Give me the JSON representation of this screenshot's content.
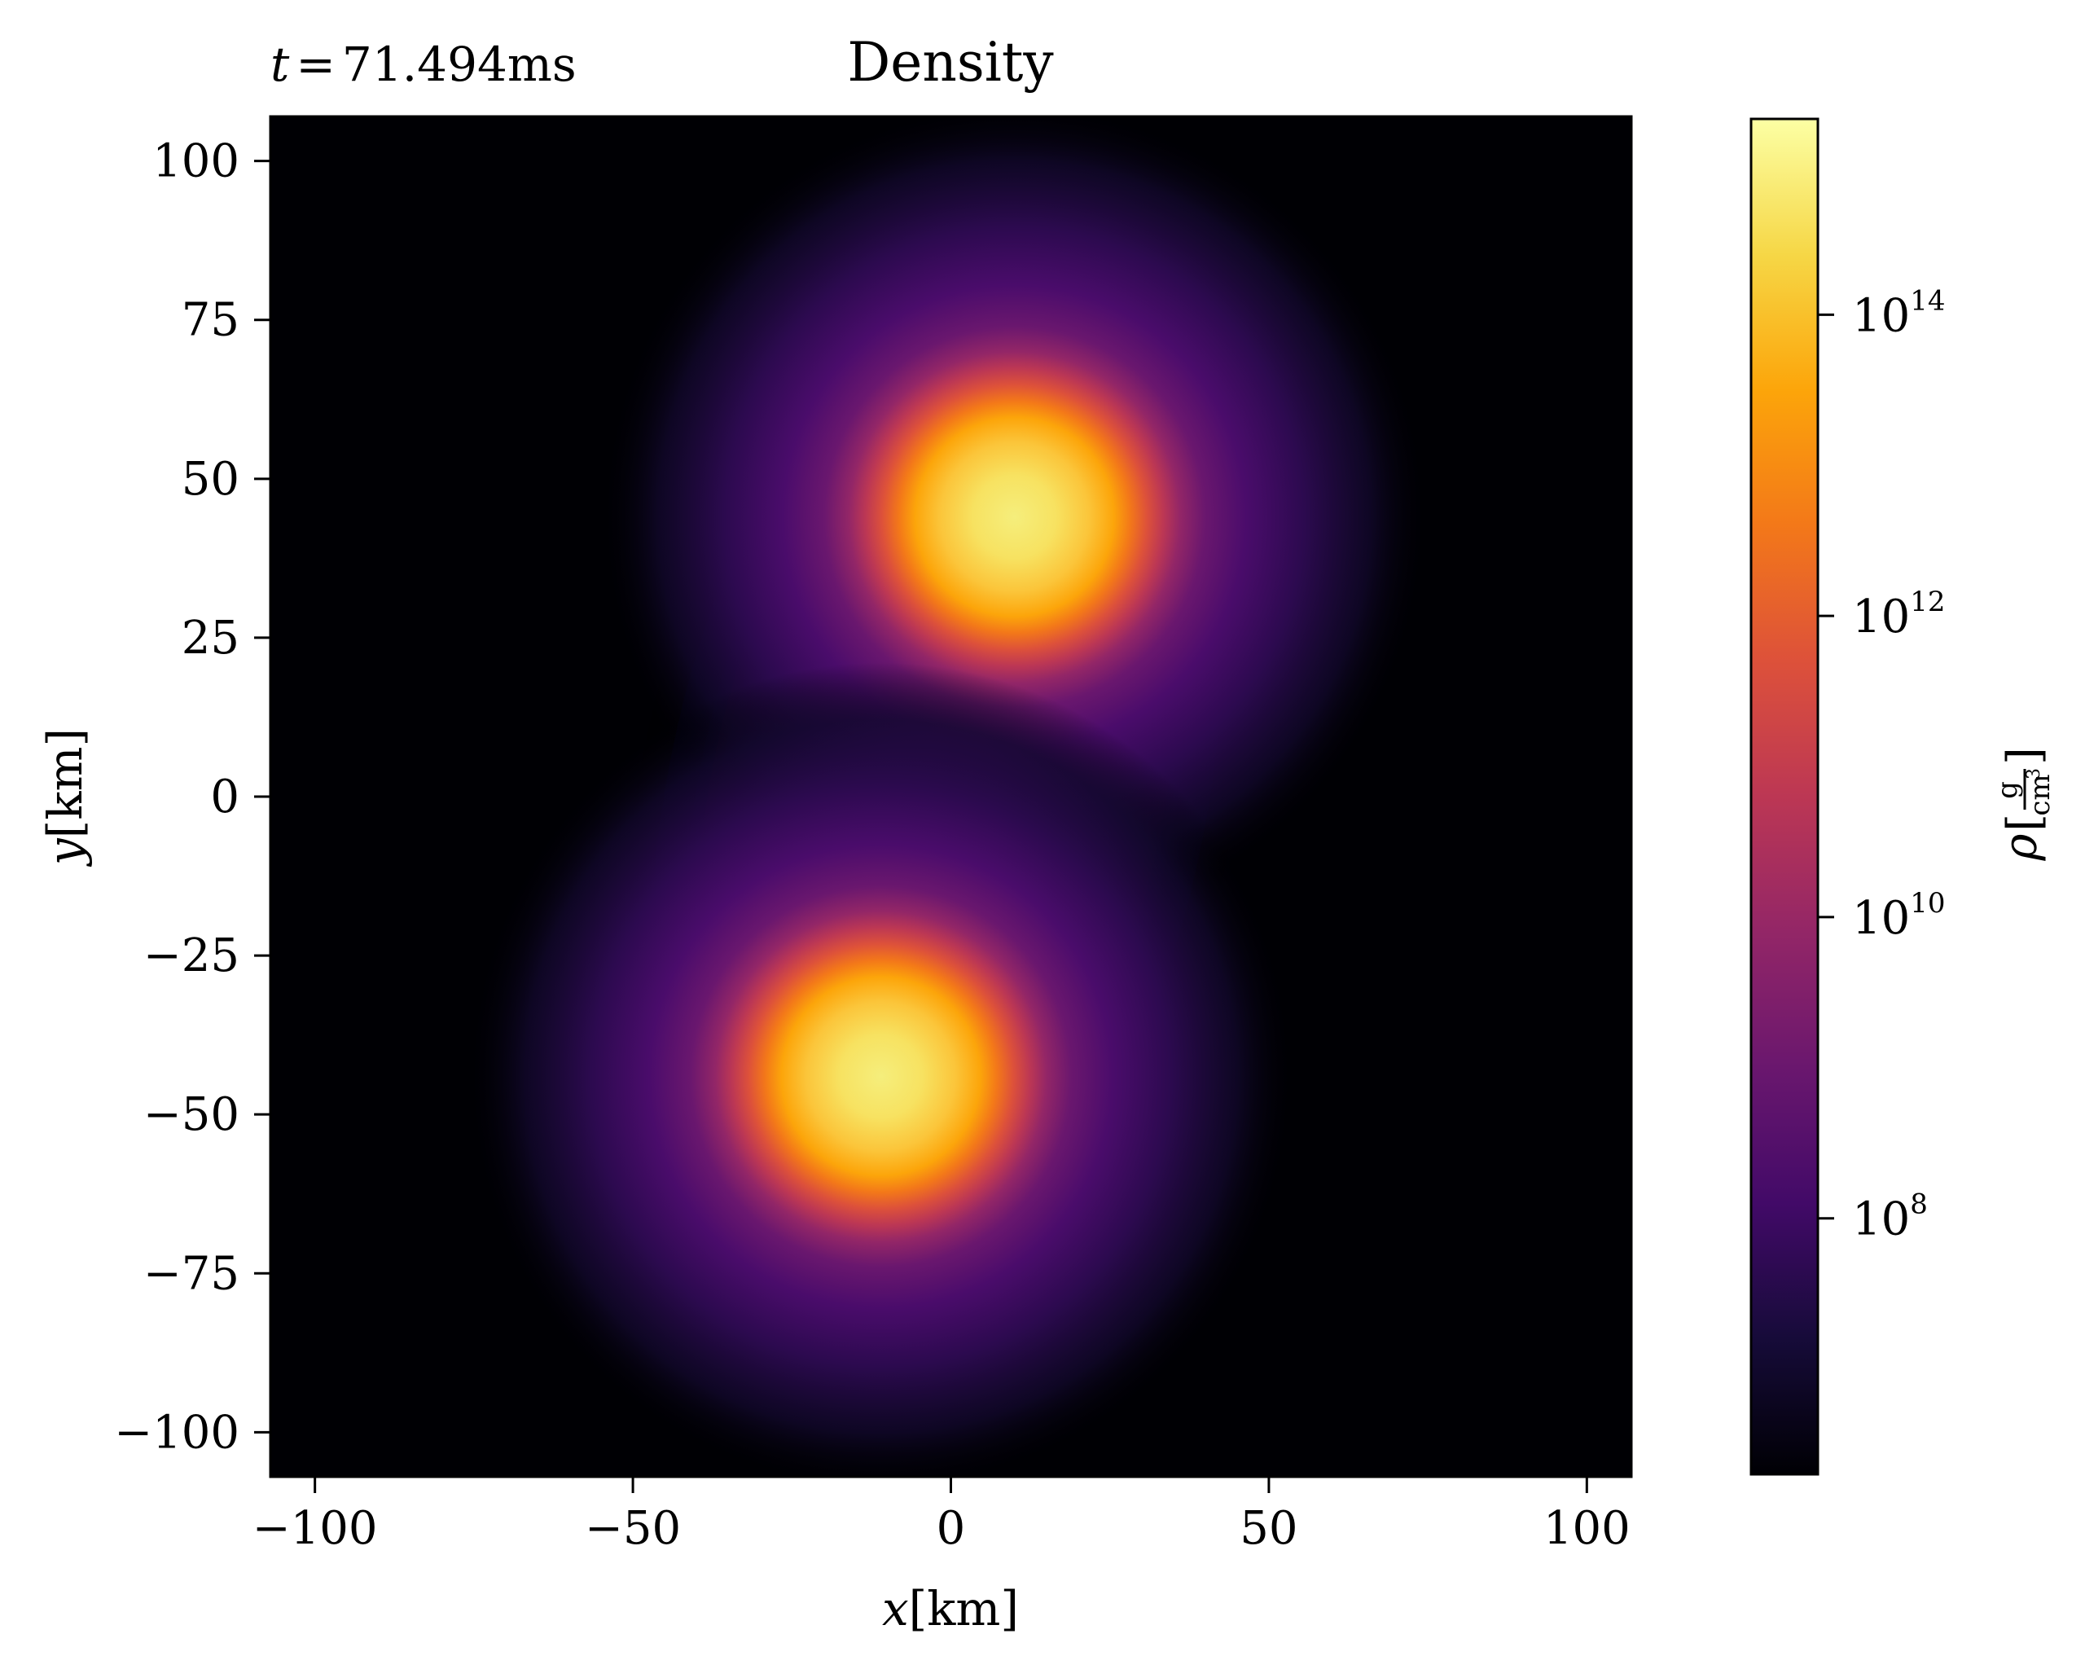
{
  "chart_data": {
    "type": "heatmap",
    "title": "Density",
    "annotation": {
      "variable": "t",
      "equals": "=",
      "value": "71.494",
      "unit": "ms"
    },
    "xlabel": {
      "variable": "x",
      "unit": "[km]"
    },
    "ylabel": {
      "variable": "y",
      "unit": "[km]"
    },
    "xlim": [
      -107,
      107
    ],
    "ylim": [
      -107,
      107
    ],
    "xticks": [
      -100,
      -50,
      0,
      50,
      100
    ],
    "yticks": [
      -100,
      -75,
      -50,
      -25,
      0,
      25,
      50,
      75,
      100
    ],
    "xtick_labels": [
      "−100",
      "−50",
      "0",
      "50",
      "100"
    ],
    "ytick_labels": [
      "−100",
      "−75",
      "−50",
      "−25",
      "0",
      "25",
      "50",
      "75",
      "100"
    ],
    "colormap": "inferno",
    "colorbar": {
      "scale": "log",
      "range_exponent": [
        6.3,
        15.3
      ],
      "tick_exponents": [
        8,
        10,
        12,
        14
      ],
      "tick_base": "10",
      "tick_exponent_labels": [
        "8",
        "10",
        "12",
        "14"
      ],
      "label": {
        "symbol": "ρ",
        "numerator": "g",
        "denominator": "cm",
        "denominator_power": "3"
      }
    },
    "features": [
      {
        "name": "upper-core",
        "center": [
          10,
          44
        ],
        "peak_log10_density": 15.0
      },
      {
        "name": "lower-core",
        "center": [
          -11,
          -44
        ],
        "peak_log10_density": 15.0
      }
    ],
    "grid": false,
    "legend": "none"
  }
}
